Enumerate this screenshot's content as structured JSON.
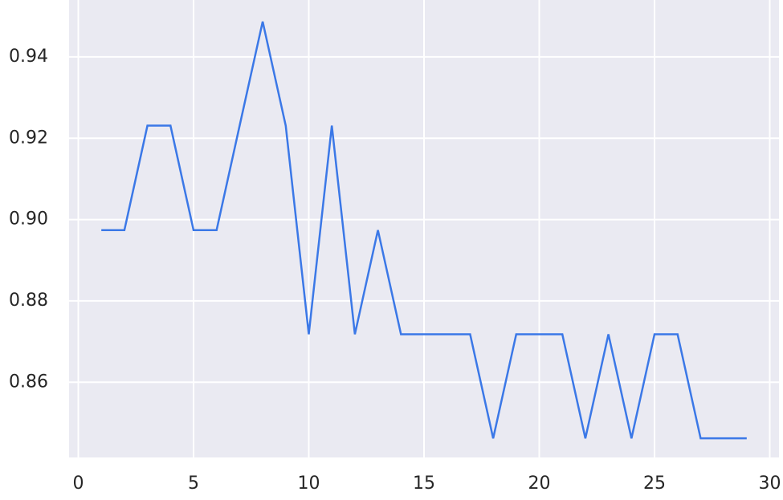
{
  "chart_data": {
    "type": "line",
    "x": [
      1,
      2,
      3,
      4,
      5,
      6,
      7,
      8,
      9,
      10,
      11,
      12,
      13,
      14,
      15,
      16,
      17,
      18,
      19,
      20,
      21,
      22,
      23,
      24,
      25,
      26,
      27,
      28,
      29
    ],
    "series": [
      {
        "color": "#3b78e7",
        "values": [
          0.8974,
          0.8974,
          0.9231,
          0.9231,
          0.8974,
          0.8974,
          0.9231,
          0.9487,
          0.9231,
          0.8718,
          0.9231,
          0.8718,
          0.8974,
          0.8718,
          0.8718,
          0.8718,
          0.8718,
          0.8462,
          0.8718,
          0.8718,
          0.8718,
          0.8462,
          0.8718,
          0.8462,
          0.8718,
          0.8718,
          0.8462,
          0.8462,
          0.8462
        ]
      }
    ],
    "xlim": [
      -0.4,
      30.4
    ],
    "xticks": [
      0,
      5,
      10,
      15,
      20,
      25,
      30
    ],
    "ylim": [
      0.8415,
      0.954
    ],
    "yticks": [
      0.86,
      0.88,
      {
        "value": 0.9,
        "label": "0.90"
      },
      0.92,
      0.94
    ],
    "grid": true
  }
}
